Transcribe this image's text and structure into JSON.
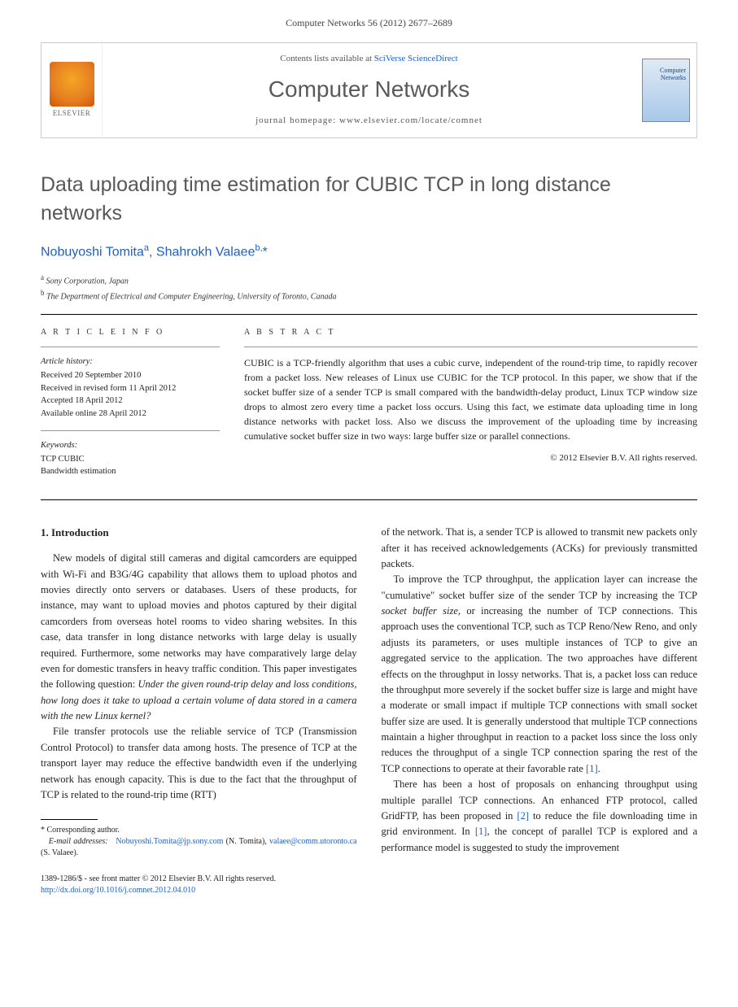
{
  "header_ref": "Computer Networks 56 (2012) 2677–2689",
  "masthead": {
    "contents_prefix": "Contents lists available at ",
    "contents_link": "SciVerse ScienceDirect",
    "journal": "Computer Networks",
    "homepage_prefix": "journal homepage: ",
    "homepage_url": "www.elsevier.com/locate/comnet",
    "elsevier": "ELSEVIER",
    "cover_text": "Computer Networks"
  },
  "title": "Data uploading time estimation for CUBIC TCP in long distance networks",
  "authors": {
    "a1_name": "Nobuyoshi Tomita",
    "a1_sup": "a",
    "a2_name": "Shahrokh Valaee",
    "a2_sup": "b,",
    "corr_mark": "*"
  },
  "affiliations": {
    "a": "Sony Corporation, Japan",
    "b": "The Department of Electrical and Computer Engineering, University of Toronto, Canada"
  },
  "info": {
    "head": "A R T I C L E  I N F O",
    "history_head": "Article history:",
    "received": "Received 20 September 2010",
    "revised": "Received in revised form 11 April 2012",
    "accepted": "Accepted 18 April 2012",
    "online": "Available online 28 April 2012",
    "keywords_head": "Keywords:",
    "kw1": "TCP CUBIC",
    "kw2": "Bandwidth estimation"
  },
  "abstract": {
    "head": "A B S T R A C T",
    "text": "CUBIC is a TCP-friendly algorithm that uses a cubic curve, independent of the round-trip time, to rapidly recover from a packet loss. New releases of Linux use CUBIC for the TCP protocol. In this paper, we show that if the socket buffer size of a sender TCP is small compared with the bandwidth-delay product, Linux TCP window size drops to almost zero every time a packet loss occurs. Using this fact, we estimate data uploading time in long distance networks with packet loss. Also we discuss the improvement of the uploading time by increasing cumulative socket buffer size in two ways: large buffer size or parallel connections.",
    "copyright": "© 2012 Elsevier B.V. All rights reserved."
  },
  "body": {
    "sec1_head": "1. Introduction",
    "p1": "New models of digital still cameras and digital camcorders are equipped with Wi-Fi and B3G/4G capability that allows them to upload photos and movies directly onto servers or databases. Users of these products, for instance, may want to upload movies and photos captured by their digital camcorders from overseas hotel rooms to video sharing websites. In this case, data transfer in long distance networks with large delay is usually required. Furthermore, some networks may have comparatively large delay even for domestic transfers in heavy traffic condition. This paper investigates the following question: ",
    "p1_ital": "Under the given round-trip delay and loss conditions, how long does it take to upload a certain volume of data stored in a camera with the new Linux kernel?",
    "p2": "File transfer protocols use the reliable service of TCP (Transmission Control Protocol) to transfer data among hosts. The presence of TCP at the transport layer may reduce the effective bandwidth even if the underlying network has enough capacity. This is due to the fact that the throughput of TCP is related to the round-trip time (RTT)",
    "p3": "of the network. That is, a sender TCP is allowed to transmit new packets only after it has received acknowledgements (ACKs) for previously transmitted packets.",
    "p4a": "To improve the TCP throughput, the application layer can increase the \"cumulative\" socket buffer size of the sender TCP by increasing the TCP ",
    "p4_ital": "socket buffer size",
    "p4b": ", or increasing the number of TCP connections. This approach uses the conventional TCP, such as TCP Reno/New Reno, and only adjusts its parameters, or uses multiple instances of TCP to give an aggregated service to the application. The two approaches have different effects on the throughput in lossy networks. That is, a packet loss can reduce the throughput more severely if the socket buffer size is large and might have a moderate or small impact if multiple TCP connections with small socket buffer size are used. It is generally understood that multiple TCP connections maintain a higher throughput in reaction to a packet loss since the loss only reduces the throughput of a single TCP connection sparing the rest of the TCP connections to operate at their favorable rate ",
    "p4_ref": "[1]",
    "p4c": ".",
    "p5a": "There has been a host of proposals on enhancing throughput using multiple parallel TCP connections. An enhanced FTP protocol, called GridFTP, has been proposed in ",
    "p5_ref1": "[2]",
    "p5b": " to reduce the file downloading time in grid environment. In ",
    "p5_ref2": "[1]",
    "p5c": ", the concept of parallel TCP is explored and a performance model is suggested to study the improvement"
  },
  "footnotes": {
    "corr": "Corresponding author.",
    "email_label": "E-mail addresses:",
    "email1": "Nobuyoshi.Tomita@jp.sony.com",
    "email1_who": " (N. Tomita), ",
    "email2": "valaee@comm.utoronto.ca",
    "email2_who": " (S. Valaee)."
  },
  "footer": {
    "line1": "1389-1286/$ - see front matter © 2012 Elsevier B.V. All rights reserved.",
    "doi": "http://dx.doi.org/10.1016/j.comnet.2012.04.010"
  }
}
